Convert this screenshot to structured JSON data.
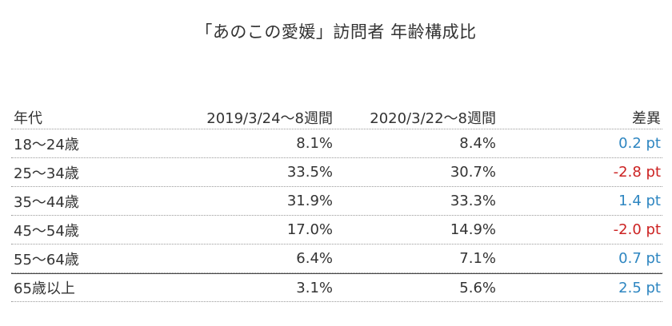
{
  "chart_data": {
    "type": "table",
    "title": "「あのこの愛媛」訪問者 年齢構成比",
    "columns": [
      "年代",
      "2019/3/24〜8週間",
      "2020/3/22〜8週間",
      "差異"
    ],
    "rows": [
      {
        "age": "18〜24歳",
        "y2019": "8.1%",
        "y2020": "8.4%",
        "diff": "0.2 pt",
        "diff_value": 0.2
      },
      {
        "age": "25〜34歳",
        "y2019": "33.5%",
        "y2020": "30.7%",
        "diff": "-2.8 pt",
        "diff_value": -2.8
      },
      {
        "age": "35〜44歳",
        "y2019": "31.9%",
        "y2020": "33.3%",
        "diff": "1.4 pt",
        "diff_value": 1.4
      },
      {
        "age": "45〜54歳",
        "y2019": "17.0%",
        "y2020": "14.9%",
        "diff": "-2.0 pt",
        "diff_value": -2.0
      },
      {
        "age": "55〜64歳",
        "y2019": "6.4%",
        "y2020": "7.1%",
        "diff": "0.7 pt",
        "diff_value": 0.7
      },
      {
        "age": "65歳以上",
        "y2019": "3.1%",
        "y2020": "5.6%",
        "diff": "2.5 pt",
        "diff_value": 2.5
      }
    ]
  },
  "colors": {
    "positive": "#2e86c1",
    "negative": "#cc2222",
    "text": "#333333"
  }
}
